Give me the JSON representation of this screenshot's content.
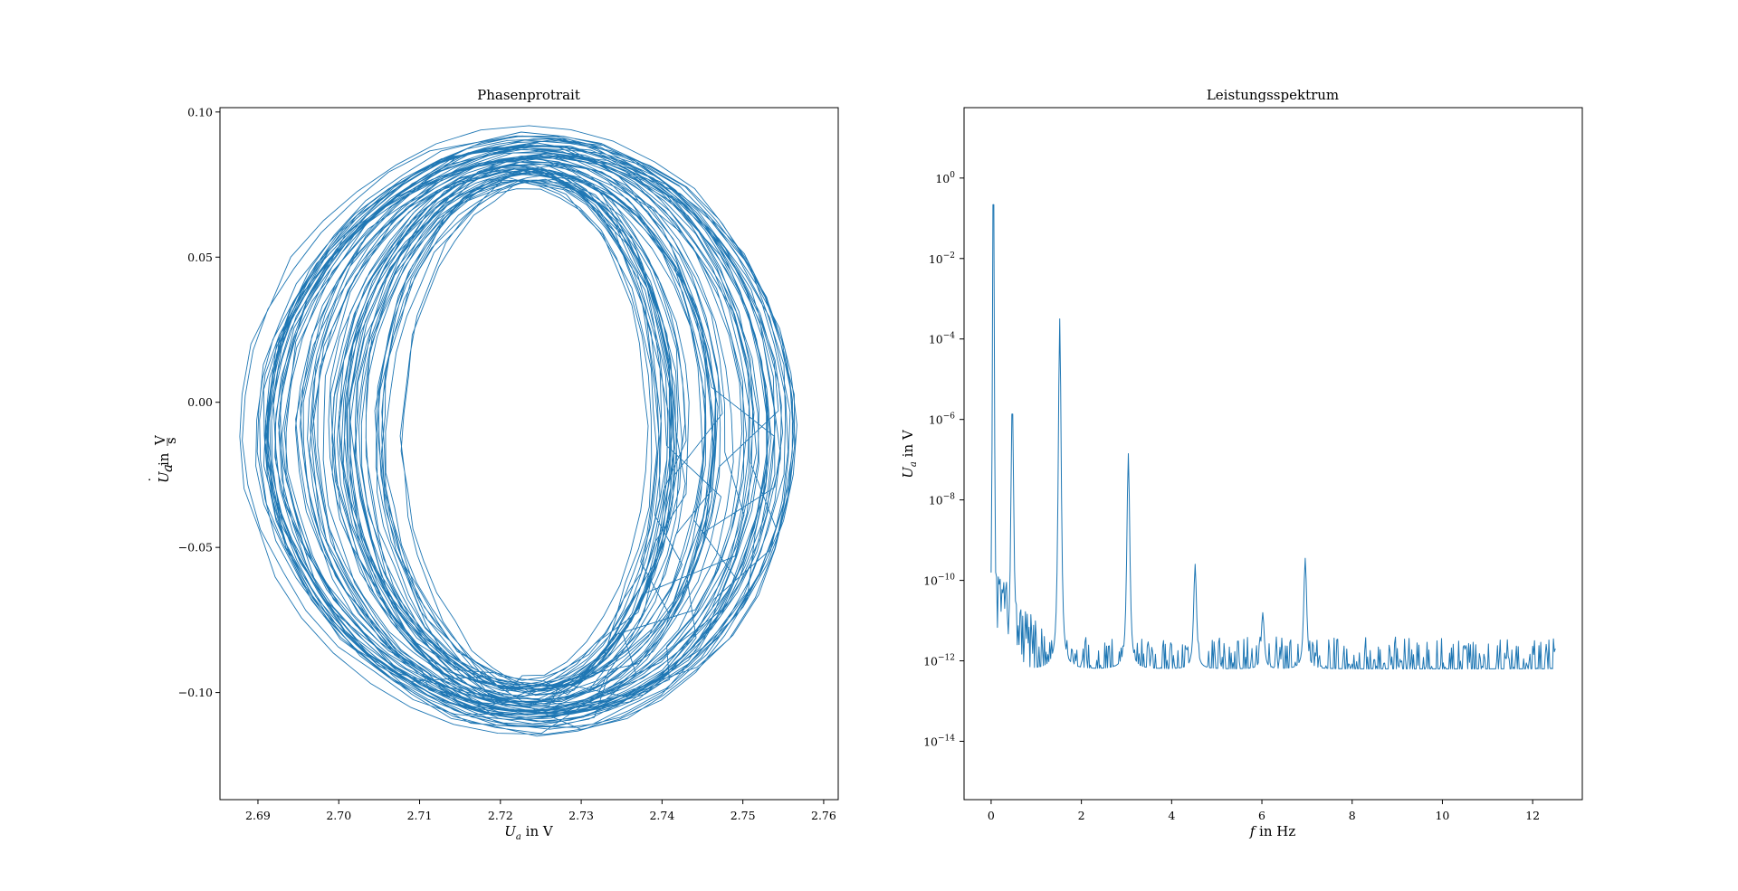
{
  "colors": {
    "series": "#1f77b4",
    "axes": "#000000",
    "background": "#ffffff"
  },
  "chart_data": [
    {
      "type": "line",
      "title": "Phasenprotrait",
      "xlabel_main": "U",
      "xlabel_sub": "a",
      "xlabel_rest": " in V",
      "ylabel_main": "U",
      "ylabel_sub": "a",
      "ylabel_rest": " in ",
      "ylabel_frac_num": "V",
      "ylabel_frac_den": "s",
      "ylabel_dot": "˙",
      "xlim": [
        2.6853,
        2.7618
      ],
      "ylim": [
        -0.1369,
        0.1015
      ],
      "xticks": [
        2.69,
        2.7,
        2.71,
        2.72,
        2.73,
        2.74,
        2.75,
        2.76
      ],
      "xtick_labels": [
        "2.69",
        "2.70",
        "2.71",
        "2.72",
        "2.73",
        "2.74",
        "2.75",
        "2.76"
      ],
      "yticks": [
        0.1,
        0.05,
        0.0,
        -0.05,
        -0.1
      ],
      "ytick_labels": [
        "0.10",
        "0.05",
        "0.00",
        "−0.05",
        "−0.10"
      ],
      "grid": false,
      "trajectory": {
        "center_x": 2.7225,
        "center_y": -0.0105,
        "rx_min": 0.0158,
        "rx_max": 0.034,
        "ry_min": 0.083,
        "ry_max": 0.105,
        "cycles": 70,
        "description_note": ""
      }
    },
    {
      "type": "line",
      "scale_y": "log",
      "title": "Leistungsspektrum",
      "xlabel_main": "f",
      "xlabel_rest": " in Hz",
      "ylabel_main": "U",
      "ylabel_sub": "a",
      "ylabel_rest": " in V",
      "xlim": [
        -0.6,
        13.1
      ],
      "ylim_log10": [
        -15.45,
        1.75
      ],
      "xticks": [
        0,
        2,
        4,
        6,
        8,
        10,
        12
      ],
      "xtick_labels": [
        "0",
        "2",
        "4",
        "6",
        "8",
        "10",
        "12"
      ],
      "yticks_log10": [
        0,
        -2,
        -4,
        -6,
        -8,
        -10,
        -12,
        -14
      ],
      "ytick_base": "10",
      "ytick_exponents": [
        "0",
        "−2",
        "−4",
        "−6",
        "−8",
        "−10",
        "−12",
        "−14"
      ],
      "grid": false,
      "peaks": [
        {
          "f": 0.05,
          "log10": 0.85
        },
        {
          "f": 0.47,
          "log10": -5.5
        },
        {
          "f": 1.52,
          "log10": -3.5
        },
        {
          "f": 3.04,
          "log10": -6.85
        },
        {
          "f": 4.52,
          "log10": -9.6
        },
        {
          "f": 6.02,
          "log10": -10.8
        },
        {
          "f": 6.96,
          "log10": -9.45
        }
      ],
      "noise_floor_log10": -12.2,
      "f_max": 12.5,
      "n_points": 625
    }
  ]
}
